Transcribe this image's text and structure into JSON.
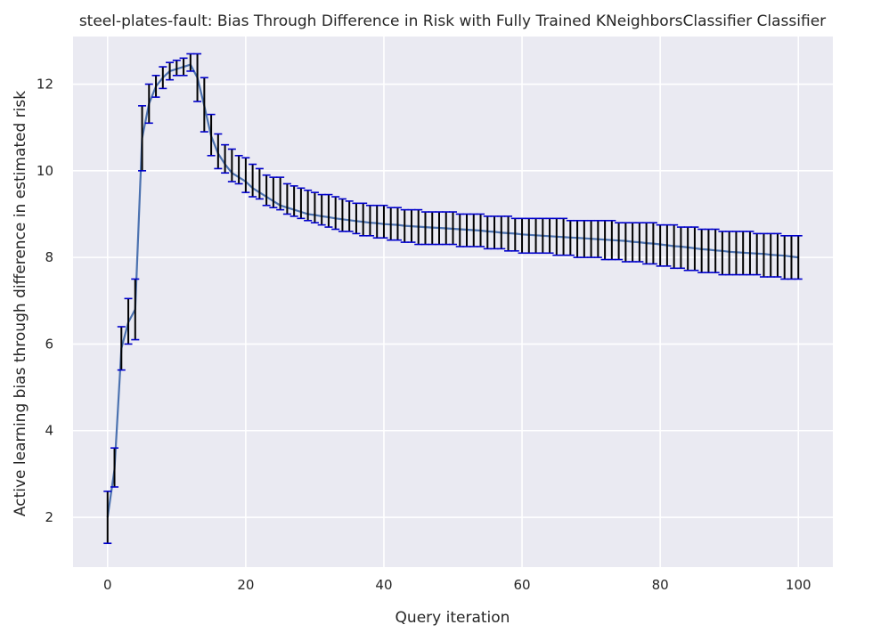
{
  "chart_data": {
    "type": "line",
    "title": "steel-plates-fault: Bias Through Difference in Risk with Fully Trained KNeighborsClassifier Classifier",
    "xlabel": "Query iteration",
    "ylabel": "Active learning bias through difference in estimated risk",
    "xlim": [
      -5,
      105
    ],
    "ylim": [
      0.85,
      13.1
    ],
    "xticks": [
      0,
      20,
      40,
      60,
      80,
      100
    ],
    "yticks": [
      2,
      4,
      6,
      8,
      10,
      12
    ],
    "grid": true,
    "legend": "none",
    "colors": {
      "background": "#eaeaf2",
      "grid": "#ffffff",
      "line": "#4c72b0",
      "errorbar": "#000000",
      "cap": "#0000cc"
    },
    "series": [
      {
        "x": [
          0,
          1,
          2,
          3,
          4,
          5,
          6,
          7,
          8,
          9,
          10,
          11,
          12,
          13,
          14,
          15,
          16,
          17,
          18,
          19,
          20,
          21,
          22,
          23,
          24,
          25,
          26,
          27,
          28,
          29,
          30,
          31,
          32,
          33,
          34,
          35,
          36,
          37,
          38,
          39,
          40,
          41,
          42,
          43,
          44,
          45,
          46,
          47,
          48,
          49,
          50,
          51,
          52,
          53,
          54,
          55,
          56,
          57,
          58,
          59,
          60,
          61,
          62,
          63,
          64,
          65,
          66,
          67,
          68,
          69,
          70,
          71,
          72,
          73,
          74,
          75,
          76,
          77,
          78,
          79,
          80,
          81,
          82,
          83,
          84,
          85,
          86,
          87,
          88,
          89,
          90,
          91,
          92,
          93,
          94,
          95,
          96,
          97,
          98,
          99,
          100
        ],
        "y": [
          2.0,
          3.1,
          5.9,
          6.5,
          6.8,
          10.75,
          11.55,
          11.95,
          12.15,
          12.3,
          12.35,
          12.4,
          12.45,
          12.15,
          11.5,
          10.8,
          10.4,
          10.15,
          9.95,
          9.85,
          9.75,
          9.6,
          9.5,
          9.4,
          9.3,
          9.2,
          9.15,
          9.1,
          9.05,
          9.0,
          8.98,
          8.95,
          8.93,
          8.9,
          8.88,
          8.86,
          8.84,
          8.82,
          8.8,
          8.79,
          8.77,
          8.76,
          8.75,
          8.73,
          8.72,
          8.71,
          8.7,
          8.69,
          8.68,
          8.67,
          8.66,
          8.65,
          8.64,
          8.63,
          8.62,
          8.6,
          8.59,
          8.57,
          8.56,
          8.55,
          8.53,
          8.52,
          8.51,
          8.5,
          8.49,
          8.48,
          8.47,
          8.46,
          8.45,
          8.44,
          8.43,
          8.42,
          8.41,
          8.4,
          8.39,
          8.38,
          8.36,
          8.35,
          8.33,
          8.32,
          8.3,
          8.28,
          8.26,
          8.25,
          8.23,
          8.21,
          8.19,
          8.18,
          8.16,
          8.15,
          8.13,
          8.12,
          8.11,
          8.1,
          8.09,
          8.08,
          8.06,
          8.05,
          8.04,
          8.02,
          8.0
        ],
        "err_low": [
          1.4,
          2.7,
          5.4,
          6.0,
          6.1,
          10.0,
          11.1,
          11.7,
          11.9,
          12.1,
          12.2,
          12.2,
          12.3,
          11.6,
          10.9,
          10.35,
          10.05,
          9.95,
          9.75,
          9.7,
          9.5,
          9.4,
          9.35,
          9.2,
          9.15,
          9.1,
          9.0,
          8.95,
          8.9,
          8.85,
          8.8,
          8.75,
          8.7,
          8.65,
          8.6,
          8.6,
          8.55,
          8.5,
          8.5,
          8.45,
          8.45,
          8.4,
          8.4,
          8.35,
          8.35,
          8.3,
          8.3,
          8.3,
          8.3,
          8.3,
          8.3,
          8.25,
          8.25,
          8.25,
          8.25,
          8.2,
          8.2,
          8.2,
          8.15,
          8.15,
          8.1,
          8.1,
          8.1,
          8.1,
          8.1,
          8.05,
          8.05,
          8.05,
          8.0,
          8.0,
          8.0,
          8.0,
          7.95,
          7.95,
          7.95,
          7.9,
          7.9,
          7.9,
          7.85,
          7.85,
          7.8,
          7.8,
          7.75,
          7.75,
          7.7,
          7.7,
          7.65,
          7.65,
          7.65,
          7.6,
          7.6,
          7.6,
          7.6,
          7.6,
          7.6,
          7.55,
          7.55,
          7.55,
          7.5,
          7.5,
          7.5
        ],
        "err_high": [
          2.6,
          3.6,
          6.4,
          7.05,
          7.5,
          11.5,
          12.0,
          12.2,
          12.4,
          12.5,
          12.55,
          12.6,
          12.7,
          12.7,
          12.15,
          11.3,
          10.85,
          10.6,
          10.5,
          10.35,
          10.3,
          10.15,
          10.05,
          9.9,
          9.85,
          9.85,
          9.7,
          9.65,
          9.6,
          9.55,
          9.5,
          9.45,
          9.45,
          9.4,
          9.35,
          9.3,
          9.25,
          9.25,
          9.2,
          9.2,
          9.2,
          9.15,
          9.15,
          9.1,
          9.1,
          9.1,
          9.05,
          9.05,
          9.05,
          9.05,
          9.05,
          9.0,
          9.0,
          9.0,
          9.0,
          8.95,
          8.95,
          8.95,
          8.95,
          8.9,
          8.9,
          8.9,
          8.9,
          8.9,
          8.9,
          8.9,
          8.9,
          8.85,
          8.85,
          8.85,
          8.85,
          8.85,
          8.85,
          8.85,
          8.8,
          8.8,
          8.8,
          8.8,
          8.8,
          8.8,
          8.75,
          8.75,
          8.75,
          8.7,
          8.7,
          8.7,
          8.65,
          8.65,
          8.65,
          8.6,
          8.6,
          8.6,
          8.6,
          8.6,
          8.55,
          8.55,
          8.55,
          8.55,
          8.5,
          8.5,
          8.5
        ]
      }
    ]
  }
}
